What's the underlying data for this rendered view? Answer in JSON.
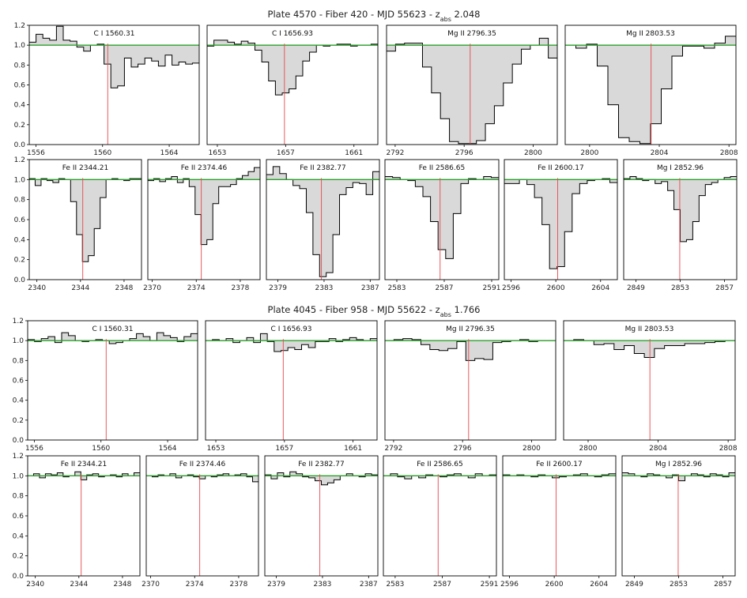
{
  "colors": {
    "continuum": "#2ca02c",
    "line_marker": "#e8474d",
    "fill": "#d9d9d9",
    "step": "#000000"
  },
  "chart_data": [
    {
      "type": "area",
      "title_parts": [
        "Plate 4570 - Fiber 420 - MJD 55623 - z",
        "abs",
        " 2.048"
      ],
      "ylim": [
        0,
        1.2
      ],
      "yticks": [
        "0.0",
        "0.2",
        "0.4",
        "0.6",
        "0.8",
        "1.0",
        "1.2"
      ],
      "rows": [
        {
          "panels": [
            {
              "label": "C I  1560.31",
              "line": 1560.31,
              "xlim": [
                1555.6,
                1565.8
              ],
              "xticks": [
                1556,
                1560,
                1564
              ],
              "flux": [
                1.03,
                1.11,
                1.07,
                1.05,
                1.19,
                1.05,
                1.04,
                0.98,
                0.94,
                1.0,
                1.01,
                0.81,
                0.57,
                0.59,
                0.87,
                0.78,
                0.81,
                0.87,
                0.84,
                0.79,
                0.9,
                0.8,
                0.83,
                0.81,
                0.82
              ]
            },
            {
              "label": "C I  1656.93",
              "line": 1656.93,
              "xlim": [
                1652.4,
                1662.4
              ],
              "xticks": [
                1653,
                1657,
                1661
              ],
              "flux": [
                0.99,
                1.05,
                1.05,
                1.03,
                1.01,
                1.04,
                1.02,
                0.95,
                0.83,
                0.64,
                0.5,
                0.52,
                0.56,
                0.69,
                0.84,
                0.93,
                1.0,
                0.99,
                1.0,
                1.01,
                1.01,
                0.99,
                1.0,
                1.0,
                1.01
              ]
            },
            {
              "label": "Mg II  2796.35",
              "line": 2796.35,
              "xlim": [
                2791.5,
                2801.4
              ],
              "xticks": [
                2792,
                2796,
                2800
              ],
              "flux": [
                0.94,
                1.01,
                1.02,
                1.02,
                0.78,
                0.52,
                0.26,
                0.03,
                0.01,
                0.01,
                0.04,
                0.21,
                0.39,
                0.62,
                0.81,
                0.96,
                1.0,
                1.07,
                0.87
              ]
            },
            {
              "label": "Mg II  2803.53",
              "line": 2803.53,
              "xlim": [
                2798.6,
                2808.4
              ],
              "xticks": [
                2800,
                2804,
                2808
              ],
              "flux": [
                1.0,
                0.97,
                1.01,
                0.79,
                0.4,
                0.07,
                0.03,
                0.01,
                0.21,
                0.56,
                0.89,
                0.99,
                0.99,
                0.97,
                1.02,
                1.09
              ]
            }
          ]
        },
        {
          "panels": [
            {
              "label": "Fe II  2344.21",
              "line": 2344.21,
              "xlim": [
                2339.3,
                2349.6
              ],
              "xticks": [
                2340,
                2344,
                2348
              ],
              "flux": [
                1.01,
                0.94,
                1.01,
                0.99,
                0.97,
                1.01,
                1.0,
                0.78,
                0.45,
                0.18,
                0.24,
                0.51,
                0.82,
                1.0,
                1.01,
                1.0,
                0.99,
                1.01,
                1.01
              ]
            },
            {
              "label": "Fe II  2374.46",
              "line": 2374.46,
              "xlim": [
                2369.6,
                2379.8
              ],
              "xticks": [
                2370,
                2374,
                2378
              ],
              "flux": [
                0.99,
                1.01,
                0.98,
                1.01,
                1.03,
                0.97,
                1.01,
                0.93,
                0.65,
                0.35,
                0.4,
                0.76,
                0.93,
                0.93,
                0.95,
                1.01,
                1.04,
                1.08,
                1.12
              ]
            },
            {
              "label": "Fe II  2382.77",
              "line": 2382.77,
              "xlim": [
                2378.0,
                2387.8
              ],
              "xticks": [
                2379,
                2383,
                2387
              ],
              "flux": [
                1.05,
                1.13,
                1.06,
                1.0,
                0.94,
                0.91,
                0.67,
                0.25,
                0.03,
                0.07,
                0.45,
                0.85,
                0.92,
                0.97,
                0.96,
                0.85,
                1.08
              ]
            },
            {
              "label": "Fe II  2586.65",
              "line": 2586.65,
              "xlim": [
                2582.0,
                2591.6
              ],
              "xticks": [
                2583,
                2587,
                2591
              ],
              "flux": [
                1.03,
                1.02,
                1.0,
                0.99,
                0.93,
                0.83,
                0.58,
                0.3,
                0.21,
                0.66,
                0.96,
                1.01,
                1.0,
                1.03,
                1.02
              ]
            },
            {
              "label": "Fe II  2600.17",
              "line": 2600.17,
              "xlim": [
                2595.4,
                2605.5
              ],
              "xticks": [
                2596,
                2600,
                2604
              ],
              "flux": [
                0.96,
                0.96,
                1.0,
                0.95,
                0.82,
                0.55,
                0.11,
                0.13,
                0.48,
                0.86,
                0.96,
                0.99,
                1.0,
                1.01,
                0.97
              ]
            },
            {
              "label": "Mg I  2852.96",
              "line": 2852.96,
              "xlim": [
                2847.9,
                2858.1
              ],
              "xticks": [
                2849,
                2853,
                2857
              ],
              "flux": [
                1.01,
                1.03,
                1.01,
                0.99,
                1.0,
                0.96,
                0.98,
                0.89,
                0.7,
                0.38,
                0.4,
                0.58,
                0.84,
                0.95,
                0.97,
                1.0,
                1.02,
                1.03
              ]
            }
          ]
        }
      ]
    },
    {
      "type": "area",
      "title_parts": [
        "Plate 4045 - Fiber 958 - MJD 55622 - z",
        "abs",
        " 1.766"
      ],
      "ylim": [
        0,
        1.2
      ],
      "yticks": [
        "0.0",
        "0.2",
        "0.4",
        "0.6",
        "0.8",
        "1.0",
        "1.2"
      ],
      "rows": [
        {
          "panels": [
            {
              "label": "C I  1560.31",
              "line": 1560.31,
              "xlim": [
                1555.6,
                1565.8
              ],
              "xticks": [
                1556,
                1560,
                1564
              ],
              "flux": [
                1.01,
                0.99,
                1.02,
                1.04,
                0.98,
                1.08,
                1.05,
                1.0,
                0.99,
                1.0,
                1.01,
                1.0,
                0.97,
                0.98,
                1.0,
                1.02,
                1.07,
                1.04,
                1.0,
                1.08,
                1.05,
                1.03,
                0.99,
                1.04,
                1.07
              ]
            },
            {
              "label": "C I  1656.93",
              "line": 1656.93,
              "xlim": [
                1652.4,
                1662.4
              ],
              "xticks": [
                1653,
                1657,
                1661
              ],
              "flux": [
                1.0,
                1.01,
                1.0,
                1.02,
                0.98,
                1.0,
                1.03,
                0.98,
                1.07,
                0.99,
                0.89,
                0.9,
                0.93,
                0.91,
                0.96,
                0.93,
                0.99,
                0.99,
                1.02,
                0.99,
                1.01,
                1.03,
                1.01,
                1.0,
                1.02
              ]
            },
            {
              "label": "Mg II  2796.35",
              "line": 2796.35,
              "xlim": [
                2791.5,
                2801.4
              ],
              "xticks": [
                2792,
                2796,
                2800
              ],
              "flux": [
                1.0,
                1.01,
                1.02,
                1.01,
                0.96,
                0.91,
                0.9,
                0.92,
                0.99,
                0.8,
                0.82,
                0.81,
                0.98,
                0.99,
                1.0,
                1.01,
                0.99,
                1.0,
                1.0
              ]
            },
            {
              "label": "Mg II  2803.53",
              "line": 2803.53,
              "xlim": [
                2798.6,
                2808.4
              ],
              "xticks": [
                2800,
                2804,
                2808
              ],
              "flux": [
                1.0,
                1.01,
                1.0,
                0.96,
                0.97,
                0.91,
                0.95,
                0.87,
                0.83,
                0.92,
                0.95,
                0.95,
                0.97,
                0.97,
                0.98,
                0.99,
                1.0
              ]
            }
          ]
        },
        {
          "panels": [
            {
              "label": "Fe II  2344.21",
              "line": 2344.21,
              "xlim": [
                2339.3,
                2349.6
              ],
              "xticks": [
                2340,
                2344,
                2348
              ],
              "flux": [
                1.0,
                1.02,
                0.98,
                1.02,
                1.01,
                1.03,
                0.99,
                1.0,
                1.04,
                0.96,
                1.01,
                1.02,
                0.99,
                1.0,
                1.01,
                0.99,
                1.02,
                1.0,
                1.03
              ]
            },
            {
              "label": "Fe II  2374.46",
              "line": 2374.46,
              "xlim": [
                2369.6,
                2379.8
              ],
              "xticks": [
                2370,
                2374,
                2378
              ],
              "flux": [
                1.0,
                0.99,
                1.01,
                1.0,
                1.02,
                0.98,
                1.0,
                1.01,
                0.99,
                0.97,
                1.0,
                0.99,
                1.01,
                1.02,
                1.0,
                1.01,
                1.02,
                0.99,
                0.94
              ]
            },
            {
              "label": "Fe II  2382.77",
              "line": 2382.77,
              "xlim": [
                2378.0,
                2387.8
              ],
              "xticks": [
                2379,
                2383,
                2387
              ],
              "flux": [
                1.01,
                0.97,
                1.03,
                0.99,
                1.04,
                1.02,
                0.99,
                0.98,
                0.95,
                0.91,
                0.93,
                0.96,
                1.0,
                1.02,
                1.0,
                0.99,
                1.02,
                1.01
              ]
            },
            {
              "label": "Fe II  2586.65",
              "line": 2586.65,
              "xlim": [
                2582.0,
                2591.6
              ],
              "xticks": [
                2583,
                2587,
                2591
              ],
              "flux": [
                1.0,
                1.02,
                0.99,
                0.97,
                1.0,
                0.98,
                1.01,
                1.0,
                0.99,
                1.01,
                1.02,
                1.0,
                0.98,
                1.02,
                1.0,
                1.01
              ]
            },
            {
              "label": "Fe II  2600.17",
              "line": 2600.17,
              "xlim": [
                2595.4,
                2605.5
              ],
              "xticks": [
                2596,
                2600,
                2604
              ],
              "flux": [
                1.01,
                1.0,
                1.01,
                1.0,
                0.99,
                1.01,
                1.0,
                0.98,
                0.99,
                1.0,
                1.01,
                1.02,
                1.0,
                0.99,
                1.01,
                1.02
              ]
            },
            {
              "label": "Mg I  2852.96",
              "line": 2852.96,
              "xlim": [
                2847.9,
                2858.1
              ],
              "xticks": [
                2849,
                2853,
                2857
              ],
              "flux": [
                1.03,
                1.02,
                1.0,
                0.99,
                1.02,
                1.01,
                1.0,
                0.98,
                1.01,
                0.95,
                1.0,
                1.02,
                1.01,
                0.99,
                1.02,
                1.01,
                0.99,
                1.03
              ]
            }
          ]
        }
      ]
    }
  ]
}
